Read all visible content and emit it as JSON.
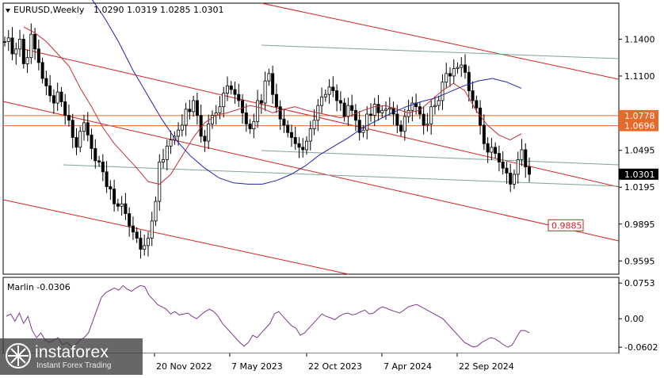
{
  "header": {
    "symbol": "EURUSD,Weekly",
    "ohlc": "1.0290 1.0319 1.0285 1.0301"
  },
  "indicator": {
    "label": "Marlin -0.0306"
  },
  "brand": {
    "name": "instaforex",
    "tagline": "Instant Forex Trading"
  },
  "colors": {
    "background": "#ffffff",
    "candles": "#000000",
    "ma_fast": "#c0303a",
    "ma_slow": "#1f24a8",
    "channel": "#d62020",
    "grid_line": "#7fa39a",
    "horizontal_level": "#e86a2a",
    "oscillator": "#7d3a8a"
  },
  "chart_data": [
    {
      "type": "candlestick",
      "title": "EURUSD,Weekly",
      "price_axis_ticks": [
        "1.1400",
        "1.1100",
        "1.0495",
        "1.0195",
        "0.9895",
        "0.9595"
      ],
      "time_axis_ticks": [
        "20 Nov 2022",
        "7 May 2023",
        "22 Oct 2023",
        "7 Apr 2024",
        "22 Sep 2024"
      ],
      "price_labels": [
        {
          "value": "1.0778",
          "style": "level"
        },
        {
          "value": "1.0696",
          "style": "level"
        },
        {
          "value": "1.0301",
          "style": "current"
        },
        {
          "value": "0.9885",
          "style": "target"
        }
      ],
      "horizontal_levels": [
        1.0778,
        1.0696
      ],
      "ylim": [
        0.95,
        1.168
      ],
      "price_series_approx": [
        1.138,
        1.141,
        1.128,
        1.132,
        1.14,
        1.12,
        1.125,
        1.144,
        1.132,
        1.121,
        1.108,
        1.102,
        1.094,
        1.088,
        1.097,
        1.089,
        1.078,
        1.074,
        1.06,
        1.052,
        1.065,
        1.072,
        1.062,
        1.051,
        1.041,
        1.04,
        1.032,
        1.02,
        1.018,
        1.006,
        1.004,
        1.006,
        0.998,
        0.988,
        0.983,
        0.978,
        0.969,
        0.972,
        0.978,
        0.992,
        1.008,
        1.04,
        1.042,
        1.053,
        1.058,
        1.061,
        1.066,
        1.07,
        1.083,
        1.081,
        1.09,
        1.078,
        1.061,
        1.057,
        1.071,
        1.078,
        1.08,
        1.085,
        1.096,
        1.102,
        1.099,
        1.095,
        1.09,
        1.08,
        1.071,
        1.067,
        1.073,
        1.09,
        1.088,
        1.106,
        1.112,
        1.095,
        1.085,
        1.075,
        1.07,
        1.064,
        1.06,
        1.055,
        1.052,
        1.05,
        1.057,
        1.067,
        1.074,
        1.086,
        1.093,
        1.095,
        1.101,
        1.098,
        1.09,
        1.088,
        1.077,
        1.086,
        1.082,
        1.074,
        1.064,
        1.066,
        1.079,
        1.078,
        1.087,
        1.08,
        1.082,
        1.083,
        1.084,
        1.079,
        1.07,
        1.065,
        1.077,
        1.082,
        1.088,
        1.085,
        1.079,
        1.07,
        1.071,
        1.085,
        1.086,
        1.09,
        1.105,
        1.112,
        1.11,
        1.116,
        1.117,
        1.119,
        1.113,
        1.098,
        1.09,
        1.084,
        1.07,
        1.055,
        1.048,
        1.052,
        1.047,
        1.04,
        1.035,
        1.031,
        1.022,
        1.03,
        1.042,
        1.05,
        1.036,
        1.03
      ],
      "ma_fast_approx": [
        1.15,
        1.145,
        1.138,
        1.128,
        1.118,
        1.1,
        1.085,
        1.068,
        1.055,
        1.045,
        1.035,
        1.024,
        1.022,
        1.03,
        1.045,
        1.06,
        1.072,
        1.078,
        1.08,
        1.083,
        1.086,
        1.084,
        1.08,
        1.083,
        1.085,
        1.082,
        1.08,
        1.078,
        1.076,
        1.078,
        1.082,
        1.085,
        1.086,
        1.083,
        1.08,
        1.082,
        1.09,
        1.098,
        1.104,
        1.098,
        1.082,
        1.07,
        1.062,
        1.058,
        1.063
      ],
      "ma_slow_approx": [
        1.188,
        1.175,
        1.158,
        1.138,
        1.115,
        1.095,
        1.075,
        1.058,
        1.045,
        1.035,
        1.027,
        1.023,
        1.022,
        1.022,
        1.025,
        1.03,
        1.037,
        1.046,
        1.053,
        1.06,
        1.068,
        1.074,
        1.08,
        1.085,
        1.089,
        1.092,
        1.097,
        1.102,
        1.106,
        1.108,
        1.105,
        1.1
      ]
    },
    {
      "type": "line",
      "title": "Marlin -0.0306",
      "y_axis_ticks": [
        "0.0753",
        "0.00",
        "-0.0602"
      ],
      "ylim": [
        -0.07,
        0.084
      ],
      "series": [
        {
          "name": "Marlin",
          "values": [
            0.005,
            0.01,
            -0.005,
            0.012,
            -0.01,
            0.005,
            -0.025,
            -0.04,
            -0.03,
            -0.045,
            -0.05,
            -0.045,
            -0.04,
            -0.055,
            -0.05,
            -0.058,
            -0.055,
            -0.045,
            -0.04,
            -0.03,
            -0.005,
            0.02,
            0.045,
            0.055,
            0.06,
            0.065,
            0.06,
            0.07,
            0.062,
            0.058,
            0.065,
            0.07,
            0.068,
            0.05,
            0.04,
            0.03,
            0.025,
            0.02,
            0.01,
            0.015,
            0.008,
            0.01,
            0.012,
            0.005,
            0.0,
            0.008,
            0.015,
            0.02,
            0.015,
            0.005,
            -0.01,
            -0.02,
            -0.03,
            -0.04,
            -0.05,
            -0.058,
            -0.05,
            -0.035,
            -0.04,
            -0.03,
            -0.02,
            -0.01,
            0.01,
            0.015,
            0.005,
            -0.005,
            -0.015,
            -0.02,
            -0.035,
            -0.03,
            -0.02,
            -0.01,
            0.0,
            0.01,
            0.005,
            0.002,
            -0.002,
            0.005,
            0.01,
            0.012,
            0.008,
            0.01,
            0.015,
            0.018,
            0.01,
            0.012,
            0.02,
            0.025,
            0.022,
            0.018,
            0.015,
            0.012,
            0.018,
            0.025,
            0.028,
            0.03,
            0.025,
            0.02,
            0.015,
            0.01,
            0.005,
            0.0,
            -0.01,
            -0.02,
            -0.03,
            -0.04,
            -0.05,
            -0.055,
            -0.06,
            -0.058,
            -0.05,
            -0.045,
            -0.04,
            -0.042,
            -0.048,
            -0.055,
            -0.06,
            -0.056,
            -0.04,
            -0.025,
            -0.025,
            -0.03
          ]
        }
      ]
    }
  ]
}
